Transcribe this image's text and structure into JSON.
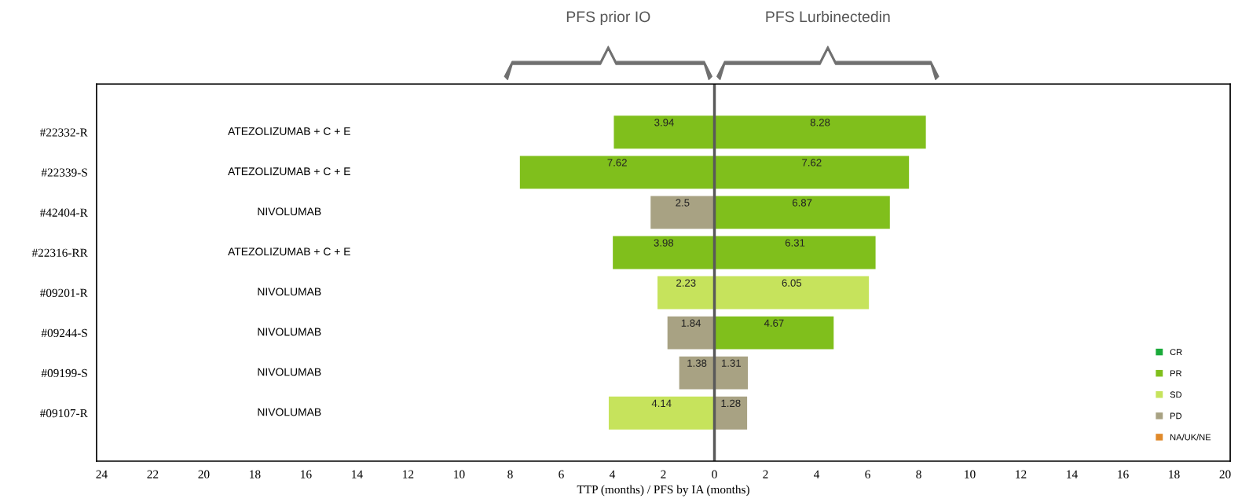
{
  "chart_data": {
    "type": "bar",
    "orientation": "horizontal",
    "xlabel": "TTP (months) / PFS by IA (months)",
    "categories": [
      "#22332-R",
      "#22339-S",
      "#42404-R",
      "#22316-RR",
      "#09201-R",
      "#09244-S",
      "#09199-S",
      "#09107-R"
    ],
    "series": [
      {
        "values": [
          3.94,
          7.62,
          2.5,
          3.98,
          2.23,
          1.84,
          1.38,
          4.14
        ],
        "base": [
          -3.94,
          -7.62,
          -2.5,
          -3.98,
          -2.23,
          -1.84,
          -1.38,
          -4.14
        ],
        "colors": [
          "#80bf1c",
          "#80bf1c",
          "#a8a283",
          "#80bf1c",
          "#c6e35c",
          "#a8a283",
          "#a8a283",
          "#c6e35c"
        ],
        "value_labels": [
          "3.94",
          "7.62",
          "2.5",
          "3.98",
          "2.23",
          "1.84",
          "1.38",
          "4.14"
        ]
      },
      {
        "values": [
          8.28,
          7.62,
          6.87,
          6.31,
          6.05,
          4.67,
          1.31,
          1.28
        ],
        "colors": [
          "#80bf1c",
          "#80bf1c",
          "#80bf1c",
          "#80bf1c",
          "#c6e35c",
          "#80bf1c",
          "#a8a283",
          "#a8a283"
        ],
        "value_labels": [
          "8.28",
          "7.62",
          "6.87",
          "6.31",
          "6.05",
          "4.67",
          "1.31",
          "1.28"
        ]
      },
      {
        "name": "CR",
        "color": "#1aaa3a",
        "values": [
          null,
          null,
          null,
          null,
          null,
          null,
          null,
          null
        ]
      },
      {
        "name": "PR",
        "color": "#80bf1c",
        "values": [
          null,
          null,
          null,
          null,
          null,
          null,
          null,
          null
        ]
      },
      {
        "name": "SD",
        "color": "#c6e35c",
        "values": [
          null,
          null,
          null,
          null,
          null,
          null,
          null,
          null
        ]
      },
      {
        "name": "PD",
        "color": "#a8a283",
        "values": [
          null,
          null,
          null,
          null,
          null,
          null,
          null,
          null
        ]
      },
      {
        "name": "NA/UK/NE",
        "color": "#e0892a",
        "values": [
          null,
          null,
          null,
          null,
          null,
          null,
          null,
          null
        ]
      }
    ],
    "xlim": [
      -24.2,
      20.2
    ],
    "xticks": [
      {
        "value": -24,
        "label": "24"
      },
      {
        "value": -22,
        "label": "22"
      },
      {
        "value": -20,
        "label": "20"
      },
      {
        "value": -18,
        "label": "18"
      },
      {
        "value": -16,
        "label": "16"
      },
      {
        "value": -14,
        "label": "14"
      },
      {
        "value": -12,
        "label": "12"
      },
      {
        "value": -10,
        "label": "10"
      },
      {
        "value": -8,
        "label": "8"
      },
      {
        "value": -6,
        "label": "6"
      },
      {
        "value": -4,
        "label": "4"
      },
      {
        "value": -2,
        "label": "2"
      },
      0,
      2,
      4,
      6,
      8,
      10,
      12,
      14,
      16,
      18,
      20
    ],
    "ref_lines": [
      {
        "axis": "x",
        "value": 0,
        "color": "#595959"
      }
    ],
    "annotations": [
      "PFS prior IO",
      "PFS Lurbinectedin",
      "ATEZOLIZUMAB + C + E",
      "ATEZOLIZUMAB + C + E",
      "NIVOLUMAB",
      "ATEZOLIZUMAB + C + E",
      "NIVOLUMAB",
      "NIVOLUMAB",
      "NIVOLUMAB",
      "NIVOLUMAB"
    ],
    "legend": "bottom right",
    "grid": false
  }
}
